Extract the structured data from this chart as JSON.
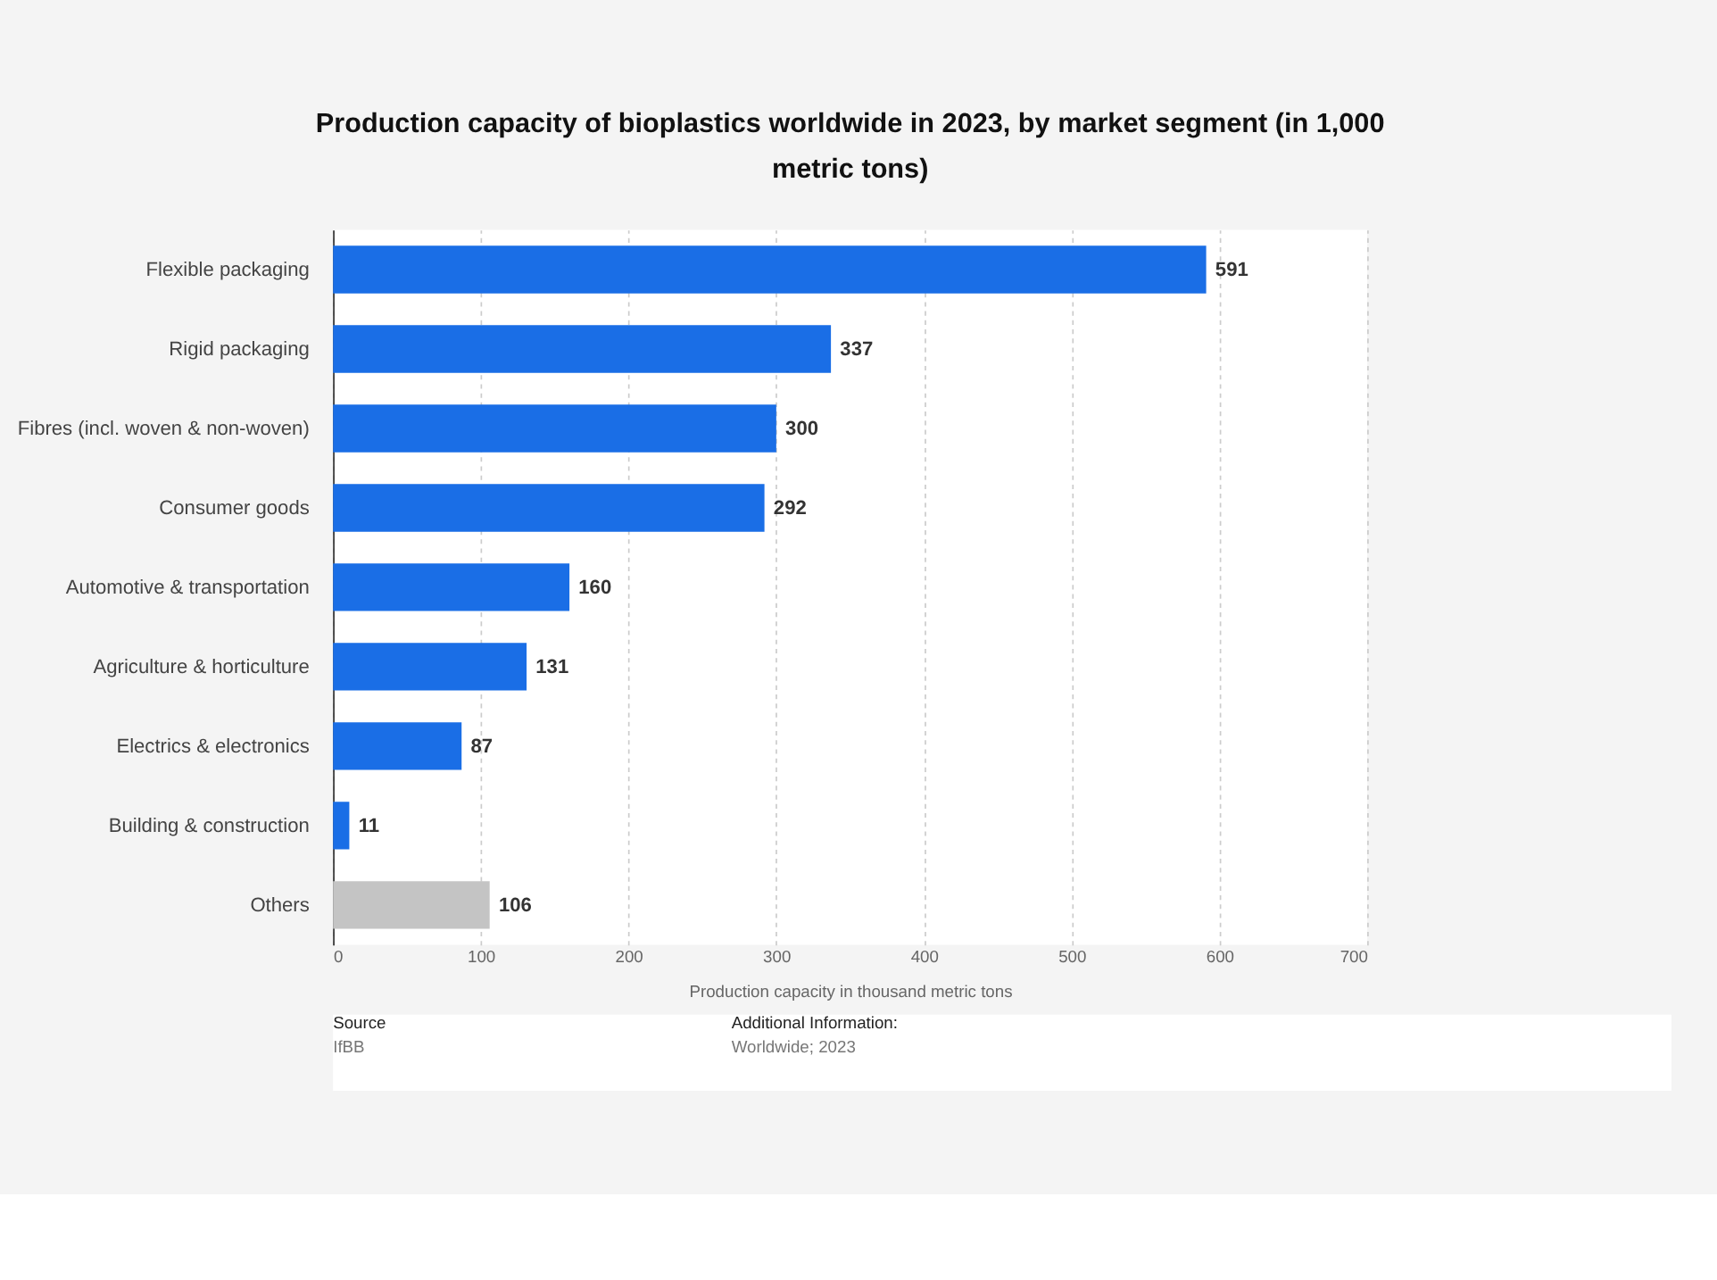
{
  "chart_data": {
    "type": "bar",
    "orientation": "horizontal",
    "title": "Production capacity of bioplastics worldwide in 2023, by market segment (in 1,000 metric tons)",
    "xlabel": "Production capacity in thousand metric tons",
    "categories": [
      "Flexible packaging",
      "Rigid packaging",
      "Fibres (incl. woven & non-woven)",
      "Consumer goods",
      "Automotive & transportation",
      "Agriculture & horticulture",
      "Electrics & electronics",
      "Building & construction",
      "Others"
    ],
    "values": [
      591,
      337,
      300,
      292,
      160,
      131,
      87,
      11,
      106
    ],
    "colors": [
      "#1a6ee6",
      "#1a6ee6",
      "#1a6ee6",
      "#1a6ee6",
      "#1a6ee6",
      "#1a6ee6",
      "#1a6ee6",
      "#1a6ee6",
      "#c4c4c4"
    ],
    "xlim": [
      0,
      700
    ],
    "xticks": [
      0,
      100,
      200,
      300,
      400,
      500,
      600,
      700
    ],
    "grid": "x",
    "data_labels": true,
    "annotations": [
      "Source",
      "IfBB",
      "Additional Information:",
      "Worldwide; 2023"
    ]
  }
}
